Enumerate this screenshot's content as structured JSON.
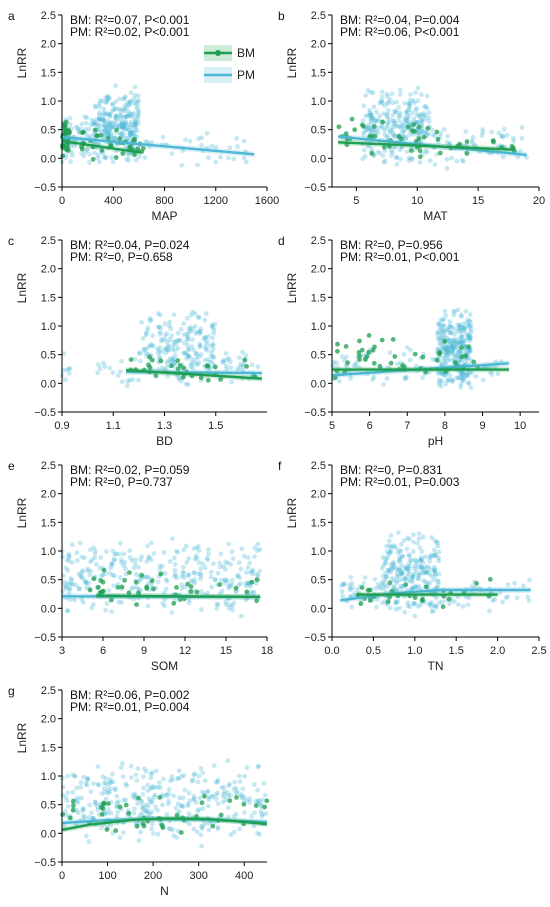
{
  "colors": {
    "BM": "#1e9e50",
    "PM": "#4cb8d6"
  },
  "legend": [
    "BM",
    "PM"
  ],
  "chart_data": [
    {
      "panel": "a",
      "type": "scatter",
      "xlabel": "MAP",
      "ylabel": "LnRR",
      "xlim": [
        0,
        1600
      ],
      "ylim": [
        -0.5,
        2.5
      ],
      "xticks": [
        0,
        400,
        800,
        1200,
        1600
      ],
      "xtick_labels": [
        "0",
        "400",
        "800",
        "1200",
        "1600"
      ],
      "yticks": [
        -0.5,
        0,
        0.5,
        1,
        1.5,
        2,
        2.5
      ],
      "ytick_labels": [
        "−0.5",
        "0.0",
        "0.5",
        "1.0",
        "1.5",
        "2.0",
        "2.5"
      ],
      "stats": [
        "BM: R²=0.07, P<0.001",
        "PM: R²=0.02, P<0.001"
      ],
      "legend": true,
      "series": [
        {
          "name": "BM",
          "fit": [
            [
              0,
              0.3
            ],
            [
              620,
              0.1
            ]
          ],
          "cloud": [
            {
              "x": [
                0,
                60
              ],
              "y": [
                0.0,
                0.7
              ],
              "n": 30
            },
            {
              "x": [
                150,
                650
              ],
              "y": [
                -0.05,
                0.6
              ],
              "n": 35
            }
          ]
        },
        {
          "name": "PM",
          "fit": [
            [
              0,
              0.37
            ],
            [
              1500,
              0.07
            ]
          ],
          "cloud": [
            {
              "x": [
                250,
                600
              ],
              "y": [
                -0.15,
                1.3
              ],
              "n": 260
            },
            {
              "x": [
                0,
                250
              ],
              "y": [
                -0.1,
                0.8
              ],
              "n": 60
            },
            {
              "x": [
                600,
                1500
              ],
              "y": [
                -0.2,
                0.55
              ],
              "n": 35
            }
          ]
        }
      ]
    },
    {
      "panel": "b",
      "type": "scatter",
      "xlabel": "MAT",
      "ylabel": "LnRR",
      "xlim": [
        3,
        20
      ],
      "ylim": [
        -0.5,
        2.5
      ],
      "xticks": [
        5,
        10,
        15,
        20
      ],
      "xtick_labels": [
        "5",
        "10",
        "15",
        "20"
      ],
      "yticks": [
        -0.5,
        0,
        0.5,
        1,
        1.5,
        2,
        2.5
      ],
      "ytick_labels": [
        "−0.5",
        "0.0",
        "0.5",
        "1.0",
        "1.5",
        "2.0",
        "2.5"
      ],
      "stats": [
        "BM: R²=0.04, P=0.004",
        "PM: R²=0.06, P<0.001"
      ],
      "series": [
        {
          "name": "BM",
          "fit": [
            [
              3.5,
              0.28
            ],
            [
              18,
              0.15
            ]
          ],
          "cloud": [
            {
              "x": [
                3.5,
                12
              ],
              "y": [
                0.0,
                0.7
              ],
              "n": 40
            },
            {
              "x": [
                12,
                18
              ],
              "y": [
                0.0,
                0.4
              ],
              "n": 12
            }
          ]
        },
        {
          "name": "PM",
          "fit": [
            [
              3.5,
              0.38
            ],
            [
              19,
              0.06
            ]
          ],
          "cloud": [
            {
              "x": [
                5.5,
                11
              ],
              "y": [
                -0.15,
                1.3
              ],
              "n": 260
            },
            {
              "x": [
                11,
                19
              ],
              "y": [
                -0.2,
                0.6
              ],
              "n": 70
            }
          ]
        }
      ]
    },
    {
      "panel": "c",
      "type": "scatter",
      "xlabel": "BD",
      "ylabel": "LnRR",
      "xlim": [
        0.9,
        1.7
      ],
      "ylim": [
        -0.5,
        2.5
      ],
      "xticks": [
        0.9,
        1.1,
        1.3,
        1.5
      ],
      "xtick_labels": [
        "0.9",
        "1.1",
        "1.3",
        "1.5"
      ],
      "yticks": [
        -0.5,
        0,
        0.5,
        1,
        1.5,
        2,
        2.5
      ],
      "ytick_labels": [
        "−0.5",
        "0.0",
        "0.5",
        "1.0",
        "1.5",
        "2.0",
        "2.5"
      ],
      "stats": [
        "BM: R²=0.04, P=0.024",
        "PM: R²=0, P=0.658"
      ],
      "series": [
        {
          "name": "BM",
          "fit": [
            [
              1.15,
              0.23
            ],
            [
              1.68,
              0.08
            ]
          ],
          "cloud": [
            {
              "x": [
                1.15,
                1.68
              ],
              "y": [
                0.0,
                0.5
              ],
              "n": 30
            }
          ]
        },
        {
          "name": "PM",
          "fit": [
            [
              1.15,
              0.2
            ],
            [
              1.68,
              0.18
            ]
          ],
          "cloud": [
            {
              "x": [
                1.2,
                1.5
              ],
              "y": [
                -0.1,
                1.3
              ],
              "n": 200
            },
            {
              "x": [
                0.9,
                1.2
              ],
              "y": [
                -0.1,
                0.6
              ],
              "n": 25
            },
            {
              "x": [
                1.5,
                1.68
              ],
              "y": [
                -0.05,
                0.6
              ],
              "n": 30
            }
          ]
        }
      ]
    },
    {
      "panel": "d",
      "type": "scatter",
      "xlabel": "pH",
      "ylabel": "LnRR",
      "xlim": [
        5,
        10.5
      ],
      "ylim": [
        -0.5,
        2.5
      ],
      "xticks": [
        5,
        6,
        7,
        8,
        9,
        10
      ],
      "xtick_labels": [
        "5",
        "6",
        "7",
        "8",
        "9",
        "10"
      ],
      "yticks": [
        -0.5,
        0,
        0.5,
        1,
        1.5,
        2,
        2.5
      ],
      "ytick_labels": [
        "−0.5",
        "0.0",
        "0.5",
        "1.0",
        "1.5",
        "2.0",
        "2.5"
      ],
      "stats": [
        "BM: R²=0, P=0.956",
        "PM: R²=0.01, P<0.001"
      ],
      "series": [
        {
          "name": "BM",
          "fit": [
            [
              5,
              0.24
            ],
            [
              9.7,
              0.24
            ]
          ],
          "cloud": [
            {
              "x": [
                5,
                9
              ],
              "y": [
                0.0,
                0.9
              ],
              "n": 45
            }
          ]
        },
        {
          "name": "PM",
          "fit": [
            [
              5,
              0.14
            ],
            [
              9.7,
              0.35
            ]
          ],
          "cloud": [
            {
              "x": [
                7.8,
                8.7
              ],
              "y": [
                -0.15,
                1.35
              ],
              "n": 280
            },
            {
              "x": [
                5,
                7.8
              ],
              "y": [
                -0.1,
                0.7
              ],
              "n": 60
            },
            {
              "x": [
                8.7,
                9.7
              ],
              "y": [
                0.0,
                0.6
              ],
              "n": 15
            }
          ]
        }
      ]
    },
    {
      "panel": "e",
      "type": "scatter",
      "xlabel": "SOM",
      "ylabel": "LnRR",
      "xlim": [
        3,
        18
      ],
      "ylim": [
        -0.5,
        2.5
      ],
      "xticks": [
        3,
        6,
        9,
        12,
        15,
        18
      ],
      "xtick_labels": [
        "3",
        "6",
        "9",
        "12",
        "15",
        "18"
      ],
      "yticks": [
        -0.5,
        0,
        0.5,
        1,
        1.5,
        2,
        2.5
      ],
      "ytick_labels": [
        "−0.5",
        "0.0",
        "0.5",
        "1.0",
        "1.5",
        "2.0",
        "2.5"
      ],
      "stats": [
        "BM: R²=0.02, P=0.059",
        "PM: R²=0, P=0.737"
      ],
      "series": [
        {
          "name": "BM",
          "fit": [
            [
              5.5,
              0.22
            ],
            [
              17.5,
              0.2
            ]
          ],
          "cloud": [
            {
              "x": [
                5,
                17.5
              ],
              "y": [
                0.0,
                0.7
              ],
              "n": 40
            }
          ]
        },
        {
          "name": "PM",
          "fit": [
            [
              3,
              0.21
            ],
            [
              17.5,
              0.2
            ]
          ],
          "cloud": [
            {
              "x": [
                3,
                17.5
              ],
              "y": [
                -0.2,
                1.3
              ],
              "n": 320
            }
          ]
        }
      ]
    },
    {
      "panel": "f",
      "type": "scatter",
      "xlabel": "TN",
      "ylabel": "LnRR",
      "xlim": [
        0,
        2.5
      ],
      "ylim": [
        -0.5,
        2.5
      ],
      "xticks": [
        0,
        0.5,
        1,
        1.5,
        2,
        2.5
      ],
      "xtick_labels": [
        "0.0",
        "0.5",
        "1.0",
        "1.5",
        "2.0",
        "2.5"
      ],
      "yticks": [
        -0.5,
        0,
        0.5,
        1,
        1.5,
        2,
        2.5
      ],
      "ytick_labels": [
        "−0.5",
        "0.0",
        "0.5",
        "1.0",
        "1.5",
        "2.0",
        "2.5"
      ],
      "stats": [
        "BM: R²=0, P=0.831",
        "PM: R²=0.01, P=0.003"
      ],
      "series": [
        {
          "name": "BM",
          "fit": [
            [
              0.3,
              0.24
            ],
            [
              2.0,
              0.24
            ]
          ],
          "cloud": [
            {
              "x": [
                0.3,
                2.0
              ],
              "y": [
                0.0,
                0.6
              ],
              "n": 30
            }
          ]
        },
        {
          "name": "PM",
          "fit": [
            [
              0.1,
              0.14
            ],
            [
              0.8,
              0.27
            ],
            [
              1.3,
              0.32
            ],
            [
              2.4,
              0.32
            ]
          ],
          "cloud": [
            {
              "x": [
                0.6,
                1.3
              ],
              "y": [
                -0.15,
                1.35
              ],
              "n": 260
            },
            {
              "x": [
                0.1,
                0.6
              ],
              "y": [
                -0.1,
                0.6
              ],
              "n": 40
            },
            {
              "x": [
                1.3,
                2.4
              ],
              "y": [
                -0.1,
                0.6
              ],
              "n": 35
            }
          ]
        }
      ]
    },
    {
      "panel": "g",
      "type": "scatter",
      "xlabel": "N",
      "ylabel": "LnRR",
      "xlim": [
        0,
        450
      ],
      "ylim": [
        -0.5,
        2.5
      ],
      "xticks": [
        0,
        100,
        200,
        300,
        400
      ],
      "xtick_labels": [
        "0",
        "100",
        "200",
        "300",
        "400"
      ],
      "yticks": [
        -0.5,
        0,
        0.5,
        1,
        1.5,
        2,
        2.5
      ],
      "ytick_labels": [
        "−0.5",
        "0.0",
        "0.5",
        "1.0",
        "1.5",
        "2.0",
        "2.5"
      ],
      "stats": [
        "BM: R²=0.06, P=0.002",
        "PM: R²=0.01, P=0.004"
      ],
      "series": [
        {
          "name": "BM",
          "fit": [
            [
              0,
              0.06
            ],
            [
              60,
              0.15
            ],
            [
              150,
              0.23
            ],
            [
              230,
              0.26
            ],
            [
              320,
              0.25
            ],
            [
              400,
              0.2
            ],
            [
              450,
              0.16
            ]
          ],
          "cloud": [
            {
              "x": [
                0,
                450
              ],
              "y": [
                0.0,
                0.7
              ],
              "n": 45
            }
          ]
        },
        {
          "name": "PM",
          "fit": [
            [
              0,
              0.18
            ],
            [
              100,
              0.23
            ],
            [
              200,
              0.25
            ],
            [
              300,
              0.24
            ],
            [
              450,
              0.2
            ]
          ],
          "cloud": [
            {
              "x": [
                0,
                450
              ],
              "y": [
                -0.25,
                1.3
              ],
              "n": 360
            }
          ]
        }
      ]
    }
  ]
}
